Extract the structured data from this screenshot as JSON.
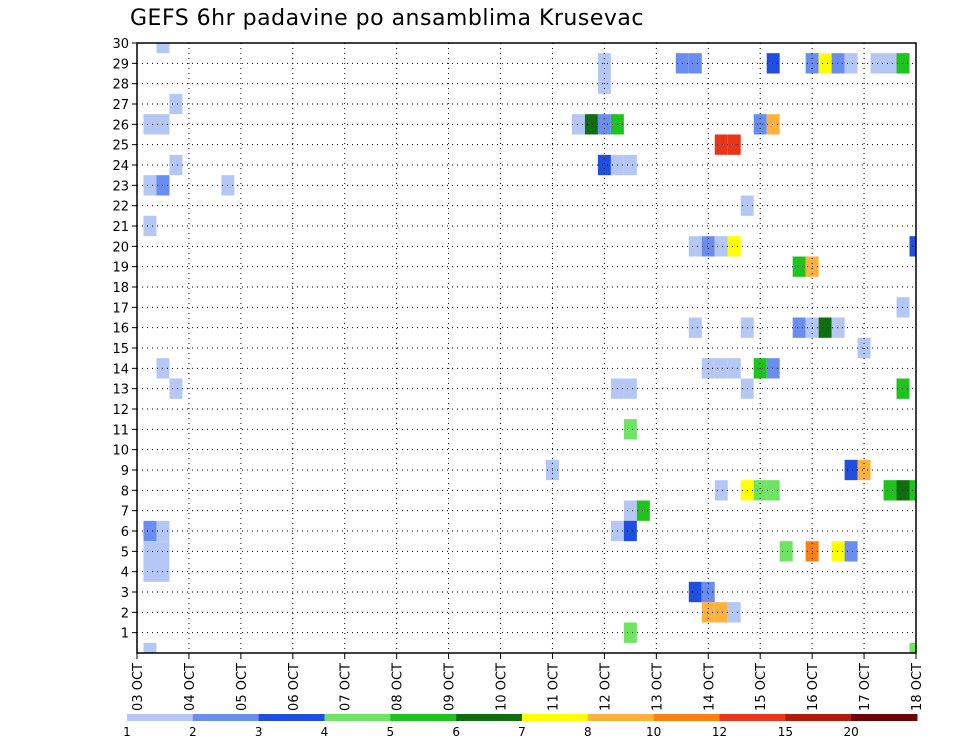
{
  "chart_data": {
    "type": "heatmap",
    "title": "GEFS 6hr padavine po ansamblima Krusevac",
    "x_ticks": [
      "03 OCT",
      "04 OCT",
      "05 OCT",
      "06 OCT",
      "07 OCT",
      "08 OCT",
      "09 OCT",
      "10 OCT",
      "11 OCT",
      "12 OCT",
      "13 OCT",
      "14 OCT",
      "15 OCT",
      "16 OCT",
      "17 OCT",
      "18 OCT"
    ],
    "y_ticks": [
      "1",
      "2",
      "3",
      "4",
      "5",
      "6",
      "7",
      "8",
      "9",
      "10",
      "11",
      "12",
      "13",
      "14",
      "15",
      "16",
      "17",
      "18",
      "19",
      "20",
      "21",
      "22",
      "23",
      "24",
      "25",
      "26",
      "27",
      "28",
      "29",
      "30"
    ],
    "y_range": [
      0,
      30
    ],
    "grid": true,
    "x_step_hours": 6,
    "colorbar": {
      "labels": [
        "1",
        "2",
        "3",
        "4",
        "5",
        "6",
        "7",
        "8",
        "10",
        "12",
        "15",
        "20"
      ],
      "colors": [
        "#b4c7f5",
        "#6a8ef0",
        "#1f4fe0",
        "#6ee462",
        "#1ec31e",
        "#0f6e0f",
        "#ffff00",
        "#ffb13c",
        "#ff7f0f",
        "#e8361a",
        "#b41a0a",
        "#6e0505"
      ]
    },
    "cells": [
      {
        "x": "03 OCT 06",
        "member": 0,
        "level": 0
      },
      {
        "x": "03 OCT 06",
        "member": 23,
        "level": 0
      },
      {
        "x": "03 OCT 06",
        "member": 21,
        "level": 0
      },
      {
        "x": "03 OCT 06",
        "member": 26,
        "level": 0
      },
      {
        "x": "03 OCT 06",
        "member": 6,
        "level": 1
      },
      {
        "x": "03 OCT 06",
        "member": 5,
        "level": 0
      },
      {
        "x": "03 OCT 06",
        "member": 4,
        "level": 0
      },
      {
        "x": "03 OCT 12",
        "member": 30,
        "level": 0
      },
      {
        "x": "03 OCT 12",
        "member": 26,
        "level": 0
      },
      {
        "x": "03 OCT 12",
        "member": 23,
        "level": 1
      },
      {
        "x": "03 OCT 12",
        "member": 14,
        "level": 0
      },
      {
        "x": "03 OCT 12",
        "member": 6,
        "level": 0
      },
      {
        "x": "03 OCT 12",
        "member": 5,
        "level": 0
      },
      {
        "x": "03 OCT 12",
        "member": 4,
        "level": 0
      },
      {
        "x": "03 OCT 18",
        "member": 27,
        "level": 0
      },
      {
        "x": "03 OCT 18",
        "member": 24,
        "level": 0
      },
      {
        "x": "03 OCT 18",
        "member": 13,
        "level": 0
      },
      {
        "x": "04 OCT 18",
        "member": 23,
        "level": 0
      },
      {
        "x": "11 OCT 00",
        "member": 9,
        "level": 0
      },
      {
        "x": "11 OCT 12",
        "member": 26,
        "level": 0
      },
      {
        "x": "11 OCT 18",
        "member": 26,
        "level": 5
      },
      {
        "x": "12 OCT 00",
        "member": 29,
        "level": 0
      },
      {
        "x": "12 OCT 00",
        "member": 28,
        "level": 0
      },
      {
        "x": "12 OCT 00",
        "member": 26,
        "level": 1
      },
      {
        "x": "12 OCT 00",
        "member": 24,
        "level": 2
      },
      {
        "x": "12 OCT 06",
        "member": 26,
        "level": 4
      },
      {
        "x": "12 OCT 06",
        "member": 24,
        "level": 0
      },
      {
        "x": "12 OCT 06",
        "member": 13,
        "level": 0
      },
      {
        "x": "12 OCT 06",
        "member": 6,
        "level": 0
      },
      {
        "x": "12 OCT 12",
        "member": 24,
        "level": 0
      },
      {
        "x": "12 OCT 12",
        "member": 13,
        "level": 0
      },
      {
        "x": "12 OCT 12",
        "member": 11,
        "level": 3
      },
      {
        "x": "12 OCT 12",
        "member": 7,
        "level": 0
      },
      {
        "x": "12 OCT 12",
        "member": 6,
        "level": 2
      },
      {
        "x": "12 OCT 12",
        "member": 1,
        "level": 3
      },
      {
        "x": "12 OCT 18",
        "member": 7,
        "level": 4
      },
      {
        "x": "13 OCT 12",
        "member": 29,
        "level": 1
      },
      {
        "x": "13 OCT 18",
        "member": 29,
        "level": 1
      },
      {
        "x": "13 OCT 18",
        "member": 20,
        "level": 0
      },
      {
        "x": "13 OCT 18",
        "member": 16,
        "level": 0
      },
      {
        "x": "13 OCT 18",
        "member": 3,
        "level": 2
      },
      {
        "x": "14 OCT 00",
        "member": 20,
        "level": 1
      },
      {
        "x": "14 OCT 00",
        "member": 14,
        "level": 0
      },
      {
        "x": "14 OCT 00",
        "member": 3,
        "level": 1
      },
      {
        "x": "14 OCT 00",
        "member": 2,
        "level": 7
      },
      {
        "x": "14 OCT 06",
        "member": 25,
        "level": 9
      },
      {
        "x": "14 OCT 06",
        "member": 20,
        "level": 0
      },
      {
        "x": "14 OCT 06",
        "member": 14,
        "level": 0
      },
      {
        "x": "14 OCT 06",
        "member": 8,
        "level": 0
      },
      {
        "x": "14 OCT 06",
        "member": 2,
        "level": 7
      },
      {
        "x": "14 OCT 12",
        "member": 25,
        "level": 9
      },
      {
        "x": "14 OCT 12",
        "member": 20,
        "level": 6
      },
      {
        "x": "14 OCT 12",
        "member": 14,
        "level": 0
      },
      {
        "x": "14 OCT 12",
        "member": 2,
        "level": 0
      },
      {
        "x": "14 OCT 18",
        "member": 22,
        "level": 0
      },
      {
        "x": "14 OCT 18",
        "member": 16,
        "level": 0
      },
      {
        "x": "14 OCT 18",
        "member": 13,
        "level": 0
      },
      {
        "x": "14 OCT 18",
        "member": 8,
        "level": 6
      },
      {
        "x": "15 OCT 00",
        "member": 26,
        "level": 1
      },
      {
        "x": "15 OCT 00",
        "member": 14,
        "level": 4
      },
      {
        "x": "15 OCT 00",
        "member": 8,
        "level": 3
      },
      {
        "x": "15 OCT 06",
        "member": 29,
        "level": 2
      },
      {
        "x": "15 OCT 06",
        "member": 26,
        "level": 7
      },
      {
        "x": "15 OCT 06",
        "member": 14,
        "level": 1
      },
      {
        "x": "15 OCT 06",
        "member": 8,
        "level": 3
      },
      {
        "x": "15 OCT 12",
        "member": 5,
        "level": 3
      },
      {
        "x": "15 OCT 18",
        "member": 19,
        "level": 4
      },
      {
        "x": "15 OCT 18",
        "member": 16,
        "level": 1
      },
      {
        "x": "16 OCT 00",
        "member": 29,
        "level": 1
      },
      {
        "x": "16 OCT 00",
        "member": 19,
        "level": 7
      },
      {
        "x": "16 OCT 00",
        "member": 16,
        "level": 0
      },
      {
        "x": "16 OCT 00",
        "member": 5,
        "level": 8
      },
      {
        "x": "16 OCT 06",
        "member": 29,
        "level": 6
      },
      {
        "x": "16 OCT 06",
        "member": 16,
        "level": 5
      },
      {
        "x": "16 OCT 12",
        "member": 29,
        "level": 1
      },
      {
        "x": "16 OCT 12",
        "member": 16,
        "level": 0
      },
      {
        "x": "16 OCT 12",
        "member": 5,
        "level": 6
      },
      {
        "x": "16 OCT 18",
        "member": 29,
        "level": 0
      },
      {
        "x": "16 OCT 18",
        "member": 9,
        "level": 2
      },
      {
        "x": "16 OCT 18",
        "member": 5,
        "level": 1
      },
      {
        "x": "17 OCT 00",
        "member": 15,
        "level": 0
      },
      {
        "x": "17 OCT 00",
        "member": 9,
        "level": 7
      },
      {
        "x": "17 OCT 06",
        "member": 29,
        "level": 0
      },
      {
        "x": "17 OCT 12",
        "member": 29,
        "level": 0
      },
      {
        "x": "17 OCT 12",
        "member": 8,
        "level": 4
      },
      {
        "x": "17 OCT 18",
        "member": 29,
        "level": 4
      },
      {
        "x": "17 OCT 18",
        "member": 17,
        "level": 0
      },
      {
        "x": "17 OCT 18",
        "member": 13,
        "level": 4
      },
      {
        "x": "17 OCT 18",
        "member": 8,
        "level": 5
      },
      {
        "x": "18 OCT 00",
        "member": 20,
        "level": 2
      },
      {
        "x": "18 OCT 00",
        "member": 8,
        "level": 4
      },
      {
        "x": "18 OCT 00",
        "member": 0,
        "level": 3
      }
    ]
  }
}
